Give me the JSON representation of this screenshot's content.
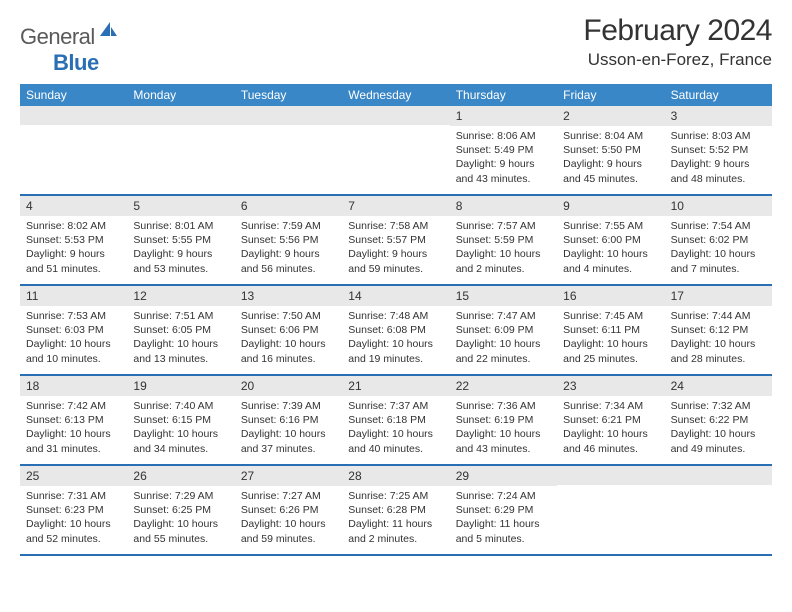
{
  "brand": {
    "part1": "General",
    "part2": "Blue"
  },
  "title": "February 2024",
  "location": "Usson-en-Forez, France",
  "colors": {
    "header_bg": "#3a87c7",
    "header_text": "#ffffff",
    "row_border": "#2a6fb5",
    "date_bg": "#e8e8e8",
    "text": "#333333",
    "brand_grey": "#5a5a5a",
    "brand_blue": "#2a6fb5"
  },
  "typography": {
    "title_fontsize": 30,
    "location_fontsize": 17,
    "day_header_fontsize": 12,
    "date_fontsize": 12,
    "body_fontsize": 10.5
  },
  "layout": {
    "columns": 7,
    "cell_min_height": 88
  },
  "dayNames": [
    "Sunday",
    "Monday",
    "Tuesday",
    "Wednesday",
    "Thursday",
    "Friday",
    "Saturday"
  ],
  "weeks": [
    [
      {
        "date": "",
        "lines": []
      },
      {
        "date": "",
        "lines": []
      },
      {
        "date": "",
        "lines": []
      },
      {
        "date": "",
        "lines": []
      },
      {
        "date": "1",
        "lines": [
          "Sunrise: 8:06 AM",
          "Sunset: 5:49 PM",
          "Daylight: 9 hours and 43 minutes."
        ]
      },
      {
        "date": "2",
        "lines": [
          "Sunrise: 8:04 AM",
          "Sunset: 5:50 PM",
          "Daylight: 9 hours and 45 minutes."
        ]
      },
      {
        "date": "3",
        "lines": [
          "Sunrise: 8:03 AM",
          "Sunset: 5:52 PM",
          "Daylight: 9 hours and 48 minutes."
        ]
      }
    ],
    [
      {
        "date": "4",
        "lines": [
          "Sunrise: 8:02 AM",
          "Sunset: 5:53 PM",
          "Daylight: 9 hours and 51 minutes."
        ]
      },
      {
        "date": "5",
        "lines": [
          "Sunrise: 8:01 AM",
          "Sunset: 5:55 PM",
          "Daylight: 9 hours and 53 minutes."
        ]
      },
      {
        "date": "6",
        "lines": [
          "Sunrise: 7:59 AM",
          "Sunset: 5:56 PM",
          "Daylight: 9 hours and 56 minutes."
        ]
      },
      {
        "date": "7",
        "lines": [
          "Sunrise: 7:58 AM",
          "Sunset: 5:57 PM",
          "Daylight: 9 hours and 59 minutes."
        ]
      },
      {
        "date": "8",
        "lines": [
          "Sunrise: 7:57 AM",
          "Sunset: 5:59 PM",
          "Daylight: 10 hours and 2 minutes."
        ]
      },
      {
        "date": "9",
        "lines": [
          "Sunrise: 7:55 AM",
          "Sunset: 6:00 PM",
          "Daylight: 10 hours and 4 minutes."
        ]
      },
      {
        "date": "10",
        "lines": [
          "Sunrise: 7:54 AM",
          "Sunset: 6:02 PM",
          "Daylight: 10 hours and 7 minutes."
        ]
      }
    ],
    [
      {
        "date": "11",
        "lines": [
          "Sunrise: 7:53 AM",
          "Sunset: 6:03 PM",
          "Daylight: 10 hours and 10 minutes."
        ]
      },
      {
        "date": "12",
        "lines": [
          "Sunrise: 7:51 AM",
          "Sunset: 6:05 PM",
          "Daylight: 10 hours and 13 minutes."
        ]
      },
      {
        "date": "13",
        "lines": [
          "Sunrise: 7:50 AM",
          "Sunset: 6:06 PM",
          "Daylight: 10 hours and 16 minutes."
        ]
      },
      {
        "date": "14",
        "lines": [
          "Sunrise: 7:48 AM",
          "Sunset: 6:08 PM",
          "Daylight: 10 hours and 19 minutes."
        ]
      },
      {
        "date": "15",
        "lines": [
          "Sunrise: 7:47 AM",
          "Sunset: 6:09 PM",
          "Daylight: 10 hours and 22 minutes."
        ]
      },
      {
        "date": "16",
        "lines": [
          "Sunrise: 7:45 AM",
          "Sunset: 6:11 PM",
          "Daylight: 10 hours and 25 minutes."
        ]
      },
      {
        "date": "17",
        "lines": [
          "Sunrise: 7:44 AM",
          "Sunset: 6:12 PM",
          "Daylight: 10 hours and 28 minutes."
        ]
      }
    ],
    [
      {
        "date": "18",
        "lines": [
          "Sunrise: 7:42 AM",
          "Sunset: 6:13 PM",
          "Daylight: 10 hours and 31 minutes."
        ]
      },
      {
        "date": "19",
        "lines": [
          "Sunrise: 7:40 AM",
          "Sunset: 6:15 PM",
          "Daylight: 10 hours and 34 minutes."
        ]
      },
      {
        "date": "20",
        "lines": [
          "Sunrise: 7:39 AM",
          "Sunset: 6:16 PM",
          "Daylight: 10 hours and 37 minutes."
        ]
      },
      {
        "date": "21",
        "lines": [
          "Sunrise: 7:37 AM",
          "Sunset: 6:18 PM",
          "Daylight: 10 hours and 40 minutes."
        ]
      },
      {
        "date": "22",
        "lines": [
          "Sunrise: 7:36 AM",
          "Sunset: 6:19 PM",
          "Daylight: 10 hours and 43 minutes."
        ]
      },
      {
        "date": "23",
        "lines": [
          "Sunrise: 7:34 AM",
          "Sunset: 6:21 PM",
          "Daylight: 10 hours and 46 minutes."
        ]
      },
      {
        "date": "24",
        "lines": [
          "Sunrise: 7:32 AM",
          "Sunset: 6:22 PM",
          "Daylight: 10 hours and 49 minutes."
        ]
      }
    ],
    [
      {
        "date": "25",
        "lines": [
          "Sunrise: 7:31 AM",
          "Sunset: 6:23 PM",
          "Daylight: 10 hours and 52 minutes."
        ]
      },
      {
        "date": "26",
        "lines": [
          "Sunrise: 7:29 AM",
          "Sunset: 6:25 PM",
          "Daylight: 10 hours and 55 minutes."
        ]
      },
      {
        "date": "27",
        "lines": [
          "Sunrise: 7:27 AM",
          "Sunset: 6:26 PM",
          "Daylight: 10 hours and 59 minutes."
        ]
      },
      {
        "date": "28",
        "lines": [
          "Sunrise: 7:25 AM",
          "Sunset: 6:28 PM",
          "Daylight: 11 hours and 2 minutes."
        ]
      },
      {
        "date": "29",
        "lines": [
          "Sunrise: 7:24 AM",
          "Sunset: 6:29 PM",
          "Daylight: 11 hours and 5 minutes."
        ]
      },
      {
        "date": "",
        "lines": []
      },
      {
        "date": "",
        "lines": []
      }
    ]
  ]
}
